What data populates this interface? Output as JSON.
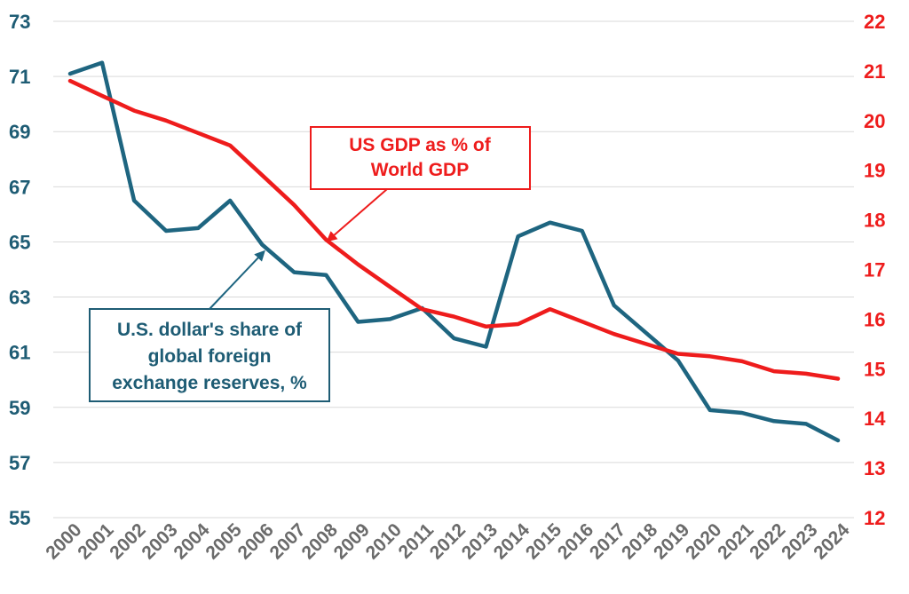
{
  "chart_data": {
    "type": "line",
    "title": "",
    "grid": true,
    "legend": "none",
    "x": [
      "2000",
      "2001",
      "2002",
      "2003",
      "2004",
      "2005",
      "2006",
      "2007",
      "2008",
      "2009",
      "2010",
      "2011",
      "2012",
      "2013",
      "2014",
      "2015",
      "2016",
      "2017",
      "2018",
      "2019",
      "2020",
      "2021",
      "2022",
      "2023",
      "2024"
    ],
    "y_left": {
      "min": 55,
      "max": 73,
      "ticks": [
        55,
        57,
        59,
        61,
        63,
        65,
        67,
        69,
        71,
        73
      ]
    },
    "y_right": {
      "min": 12,
      "max": 22,
      "ticks": [
        12,
        13,
        14,
        15,
        16,
        17,
        18,
        19,
        20,
        21,
        22
      ]
    },
    "series": [
      {
        "name": "U.S. dollar's share of global foreign exchange reserves, %",
        "axis": "left",
        "color": "#1e6580",
        "values": [
          71.1,
          71.5,
          66.5,
          65.4,
          65.5,
          66.5,
          64.9,
          63.9,
          63.8,
          62.1,
          62.2,
          62.6,
          61.5,
          61.2,
          65.2,
          65.7,
          65.4,
          62.7,
          61.7,
          60.7,
          58.9,
          58.8,
          58.5,
          58.4,
          57.8
        ]
      },
      {
        "name": "US GDP as % of World GDP",
        "axis": "right",
        "color": "#ee1c1c",
        "values": [
          20.8,
          20.5,
          20.2,
          20.0,
          19.75,
          19.5,
          18.9,
          18.3,
          17.6,
          17.1,
          16.65,
          16.2,
          16.05,
          15.85,
          15.9,
          16.2,
          15.95,
          15.7,
          15.5,
          15.3,
          15.25,
          15.15,
          14.95,
          14.9,
          14.8
        ]
      }
    ],
    "annotations": [
      {
        "text_lines": [
          "US GDP as % of",
          "World GDP"
        ],
        "color": "#ee1c1c",
        "series": 1
      },
      {
        "text_lines": [
          "U.S. dollar's share of",
          "global foreign",
          "exchange reserves, %"
        ],
        "color": "#1e5c74",
        "series": 0
      }
    ]
  }
}
